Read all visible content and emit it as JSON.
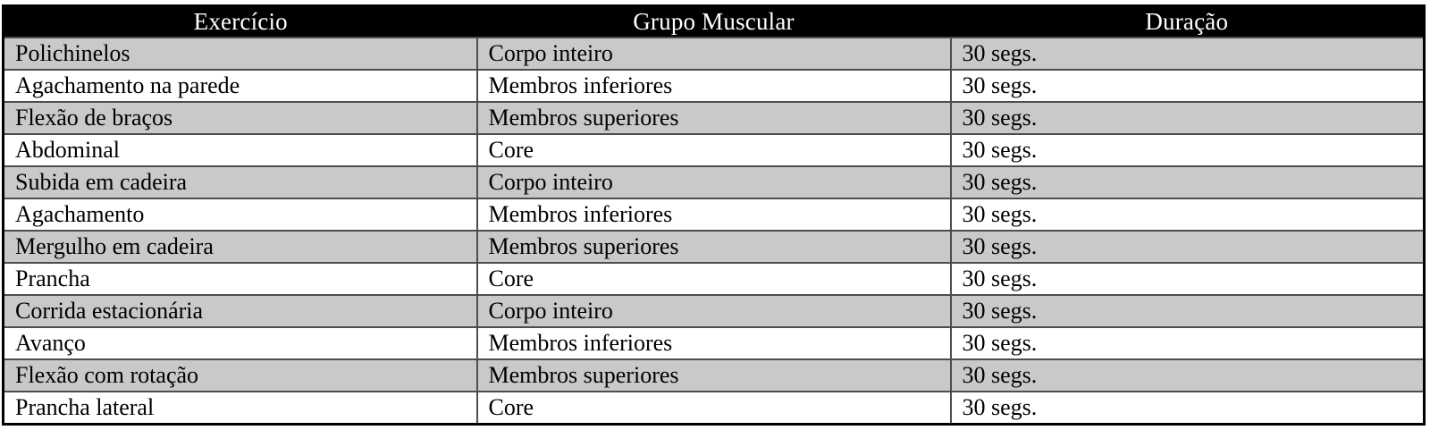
{
  "table": {
    "columns": [
      "Exercício",
      "Grupo Muscular",
      "Duração"
    ],
    "rows": [
      [
        "Polichinelos",
        "Corpo inteiro",
        "30 segs."
      ],
      [
        "Agachamento na parede",
        "Membros inferiores",
        "30 segs."
      ],
      [
        "Flexão de braços",
        "Membros superiores",
        "30 segs."
      ],
      [
        "Abdominal",
        "Core",
        "30 segs."
      ],
      [
        "Subida em cadeira",
        "Corpo inteiro",
        "30 segs."
      ],
      [
        "Agachamento",
        "Membros inferiores",
        "30 segs."
      ],
      [
        "Mergulho em cadeira",
        "Membros superiores",
        "30 segs."
      ],
      [
        "Prancha",
        "Core",
        "30 segs."
      ],
      [
        "Corrida estacionária",
        "Corpo inteiro",
        "30 segs."
      ],
      [
        "Avanço",
        "Membros inferiores",
        "30 segs."
      ],
      [
        "Flexão com rotação",
        "Membros superiores",
        "30 segs."
      ],
      [
        "Prancha lateral",
        "Core",
        "30 segs."
      ]
    ],
    "colors": {
      "header_bg": "#000000",
      "header_text": "#ffffff",
      "row_shaded_bg": "#c9c9c9",
      "row_plain_bg": "#ffffff",
      "outer_border": "#000000",
      "inner_border": "#4d4d4d"
    }
  }
}
